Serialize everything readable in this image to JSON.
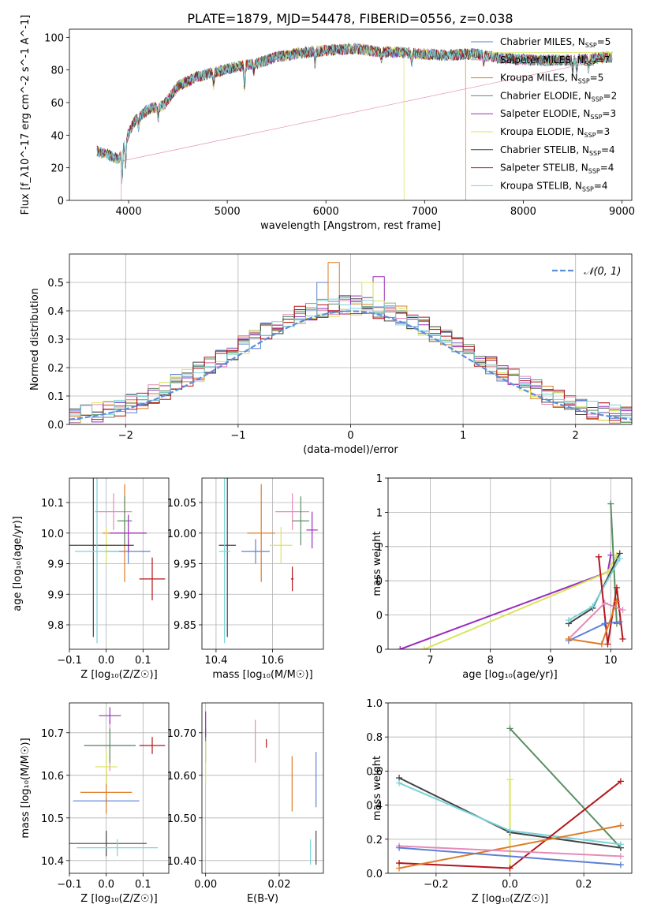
{
  "figure": {
    "title": "PLATE=1879, MJD=54478, FIBERID=0556, z=0.038"
  },
  "colors": {
    "Chabrier MILES": "#5b7fd6",
    "Salpeter MILES": "#e58bb8",
    "Kroupa MILES": "#de7c26",
    "Chabrier ELODIE": "#5a8f64",
    "Salpeter ELODIE": "#9a2dbd",
    "Kroupa ELODIE": "#d9e45c",
    "Chabrier STELIB": "#444444",
    "Salpeter STELIB": "#b2161c",
    "Kroupa STELIB": "#7ad3d9",
    "normal": "#5b8fd9",
    "grid": "#b0b0b0"
  },
  "chart_data": [
    {
      "type": "line",
      "title": "PLATE=1879, MJD=54478, FIBERID=0556, z=0.038",
      "xlabel": "wavelength [Angstrom, rest frame]",
      "ylabel": "Flux [f_λ10^-17 erg cm^-2 s^-1 A^-1]",
      "xlim": [
        3400,
        9100
      ],
      "ylim": [
        0,
        105
      ],
      "xticks": [
        4000,
        5000,
        6000,
        7000,
        8000,
        9000
      ],
      "yticks": [
        0,
        20,
        40,
        60,
        80,
        100
      ],
      "legend_position": "right",
      "legend": [
        {
          "key": "Chabrier MILES",
          "label": "Chabrier MILES, N",
          "sub": "SSP",
          "tail": "=5"
        },
        {
          "key": "Salpeter MILES",
          "label": "Salpeter MILES, N",
          "sub": "SSP",
          "tail": "=7"
        },
        {
          "key": "Kroupa MILES",
          "label": "Kroupa MILES, N",
          "sub": "SSP",
          "tail": "=5"
        },
        {
          "key": "Chabrier ELODIE",
          "label": "Chabrier ELODIE, N",
          "sub": "SSP",
          "tail": "=2"
        },
        {
          "key": "Salpeter ELODIE",
          "label": "Salpeter ELODIE, N",
          "sub": "SSP",
          "tail": "=3"
        },
        {
          "key": "Kroupa ELODIE",
          "label": "Kroupa ELODIE, N",
          "sub": "SSP",
          "tail": "=3"
        },
        {
          "key": "Chabrier STELIB",
          "label": "Chabrier STELIB, N",
          "sub": "SSP",
          "tail": "=4"
        },
        {
          "key": "Salpeter STELIB",
          "label": "Salpeter STELIB, N",
          "sub": "SSP",
          "tail": "=4"
        },
        {
          "key": "Kroupa STELIB",
          "label": "Kroupa STELIB, N",
          "sub": "SSP",
          "tail": "=4"
        }
      ],
      "spectrum_range": [
        3680,
        8900
      ],
      "continuum": [
        [
          3680,
          30
        ],
        [
          3800,
          28
        ],
        [
          3900,
          25
        ],
        [
          3960,
          35
        ],
        [
          4050,
          48
        ],
        [
          4200,
          56
        ],
        [
          4350,
          58
        ],
        [
          4500,
          70
        ],
        [
          4700,
          76
        ],
        [
          4900,
          79
        ],
        [
          5100,
          82
        ],
        [
          5300,
          84
        ],
        [
          5500,
          88
        ],
        [
          5700,
          90
        ],
        [
          6000,
          92
        ],
        [
          6300,
          93
        ],
        [
          6550,
          91
        ],
        [
          6700,
          91
        ],
        [
          6900,
          90
        ],
        [
          7200,
          89
        ],
        [
          7500,
          90
        ],
        [
          7800,
          87
        ],
        [
          8100,
          86
        ],
        [
          8500,
          86
        ],
        [
          8900,
          88
        ]
      ],
      "absorption": [
        [
          3934,
          18
        ],
        [
          3969,
          14
        ],
        [
          4102,
          6
        ],
        [
          4300,
          8
        ],
        [
          4861,
          8
        ],
        [
          5175,
          14
        ],
        [
          5270,
          5
        ],
        [
          5890,
          8
        ],
        [
          6563,
          4
        ],
        [
          6870,
          6
        ],
        [
          7600,
          4
        ],
        [
          8500,
          6
        ],
        [
          8542,
          6
        ],
        [
          8662,
          6
        ]
      ],
      "dropouts": [
        {
          "key": "Salpeter MILES",
          "x": 3925,
          "w": 10
        },
        {
          "key": "Kroupa ELODIE",
          "x": 6790,
          "w": 12
        },
        {
          "key": "Kroupa MILES",
          "x": 7415,
          "w": 12
        }
      ],
      "truncated_after": {
        "Kroupa MILES": 7415
      }
    },
    {
      "type": "area",
      "xlabel": "(data-model)/error",
      "ylabel": "Normed distribution",
      "xlim": [
        -2.5,
        2.5
      ],
      "ylim": [
        0,
        0.6
      ],
      "xticks": [
        -2,
        -1,
        0,
        1,
        2
      ],
      "yticks": [
        0.0,
        0.1,
        0.2,
        0.3,
        0.4,
        0.5
      ],
      "bin_width": 0.1,
      "legend": [
        {
          "key": "normal",
          "label": "𝒩(0, 1)"
        }
      ],
      "legend_position": "top-right",
      "notable_peaks": [
        {
          "key": "Kroupa MILES",
          "x": -0.15,
          "y": 0.57
        },
        {
          "key": "Chabrier MILES",
          "x": -0.25,
          "y": 0.5
        },
        {
          "key": "Kroupa ELODIE",
          "x": 0.15,
          "y": 0.5
        },
        {
          "key": "Salpeter ELODIE",
          "x": 0.25,
          "y": 0.52
        }
      ]
    },
    {
      "type": "scatter",
      "xlabel": "Z [log₁₀(Z/Z☉)]",
      "ylabel": "age  [log₁₀(age/yr)]",
      "xlim": [
        -0.1,
        0.17
      ],
      "ylim": [
        9.81,
        10.09
      ],
      "xticks": [
        -0.1,
        0.0,
        0.1
      ],
      "yticks": [
        9.85,
        9.9,
        9.95,
        10.0,
        10.05
      ],
      "points": [
        {
          "key": "Chabrier MILES",
          "x": 0.06,
          "xerr": 0.06,
          "y": 9.97,
          "yerr": 0.02
        },
        {
          "key": "Salpeter MILES",
          "x": 0.02,
          "xerr": 0.05,
          "y": 10.035,
          "yerr": 0.03
        },
        {
          "key": "Kroupa MILES",
          "x": 0.05,
          "xerr": 0.06,
          "y": 10.0,
          "yerr": 0.08
        },
        {
          "key": "Chabrier ELODIE",
          "x": 0.05,
          "xerr": 0.02,
          "y": 10.02,
          "yerr": 0.04
        },
        {
          "key": "Salpeter ELODIE",
          "x": 0.06,
          "xerr": 0.05,
          "y": 10.0,
          "yerr": 0.03
        },
        {
          "key": "Kroupa ELODIE",
          "x": 0.0,
          "xerr": 0.04,
          "y": 9.98,
          "yerr": 0.03
        },
        {
          "key": "Chabrier STELIB",
          "x": -0.035,
          "xerr": 0.11,
          "y": 9.98,
          "yerr": 0.15
        },
        {
          "key": "Salpeter STELIB",
          "x": 0.125,
          "xerr": 0.035,
          "y": 9.925,
          "yerr": 0.035
        },
        {
          "key": "Kroupa STELIB",
          "x": -0.025,
          "xerr": 0.06,
          "y": 9.97,
          "yerr": 0.15
        }
      ]
    },
    {
      "type": "scatter",
      "xlabel": "mass [log₁₀(M/M☉)]",
      "ylabel": "",
      "xlim": [
        10.35,
        10.78
      ],
      "ylim": [
        9.81,
        10.09
      ],
      "xticks": [
        10.4,
        10.6
      ],
      "yticks": [
        9.85,
        9.9,
        9.95,
        10.0,
        10.05
      ],
      "points": [
        {
          "key": "Chabrier MILES",
          "x": 10.54,
          "xerr": 0.05,
          "y": 9.97,
          "yerr": 0.02
        },
        {
          "key": "Salpeter MILES",
          "x": 10.67,
          "xerr": 0.06,
          "y": 10.035,
          "yerr": 0.03
        },
        {
          "key": "Kroupa MILES",
          "x": 10.56,
          "xerr": 0.05,
          "y": 10.0,
          "yerr": 0.08
        },
        {
          "key": "Chabrier ELODIE",
          "x": 10.7,
          "xerr": 0.03,
          "y": 10.02,
          "yerr": 0.04
        },
        {
          "key": "Salpeter ELODIE",
          "x": 10.74,
          "xerr": 0.02,
          "y": 10.005,
          "yerr": 0.03
        },
        {
          "key": "Kroupa ELODIE",
          "x": 10.63,
          "xerr": 0.04,
          "y": 9.98,
          "yerr": 0.03
        },
        {
          "key": "Chabrier STELIB",
          "x": 10.44,
          "xerr": 0.03,
          "y": 9.98,
          "yerr": 0.15
        },
        {
          "key": "Salpeter STELIB",
          "x": 10.67,
          "xerr": 0.005,
          "y": 9.925,
          "yerr": 0.02
        },
        {
          "key": "Kroupa STELIB",
          "x": 10.43,
          "xerr": 0.02,
          "y": 9.97,
          "yerr": 0.15
        }
      ]
    },
    {
      "type": "line",
      "xlabel": "age  [log₁₀(age/yr)]",
      "ylabel": "mass weight",
      "xlim": [
        6.3,
        10.35
      ],
      "ylim": [
        0,
        1
      ],
      "xticks": [
        7,
        8,
        9,
        10
      ],
      "yticks": [
        0.0,
        0.2,
        0.4,
        0.6,
        0.8,
        1.0
      ],
      "series": [
        {
          "key": "Salpeter ELODIE",
          "x": [
            6.5,
            9.95,
            10.0
          ],
          "y": [
            0.0,
            0.45,
            0.55
          ]
        },
        {
          "key": "Kroupa ELODIE",
          "x": [
            6.9,
            9.95,
            10.1
          ],
          "y": [
            0.0,
            0.45,
            0.55
          ]
        },
        {
          "key": "Chabrier ELODIE",
          "x": [
            10.0,
            10.1
          ],
          "y": [
            0.85,
            0.15
          ]
        },
        {
          "key": "Chabrier STELIB",
          "x": [
            9.3,
            9.7,
            10.15
          ],
          "y": [
            0.15,
            0.24,
            0.56
          ]
        },
        {
          "key": "Kroupa STELIB",
          "x": [
            9.3,
            9.7,
            10.15
          ],
          "y": [
            0.17,
            0.25,
            0.53
          ]
        },
        {
          "key": "Salpeter STELIB",
          "x": [
            9.8,
            9.95,
            10.1,
            10.2
          ],
          "y": [
            0.54,
            0.03,
            0.36,
            0.06
          ]
        },
        {
          "key": "Chabrier MILES",
          "x": [
            9.3,
            9.9,
            10.15
          ],
          "y": [
            0.05,
            0.15,
            0.16
          ]
        },
        {
          "key": "Salpeter MILES",
          "x": [
            9.3,
            9.9,
            10.2
          ],
          "y": [
            0.06,
            0.27,
            0.23
          ]
        },
        {
          "key": "Kroupa MILES",
          "x": [
            9.3,
            9.85,
            10.1
          ],
          "y": [
            0.06,
            0.03,
            0.28
          ]
        }
      ]
    },
    {
      "type": "scatter",
      "xlabel": "Z [log₁₀(Z/Z☉)]",
      "ylabel": "mass [log₁₀(M/M☉)]",
      "xlim": [
        -0.1,
        0.17
      ],
      "ylim": [
        10.37,
        10.77
      ],
      "xticks": [
        -0.1,
        0.0,
        0.1
      ],
      "yticks": [
        10.4,
        10.5,
        10.6,
        10.7
      ],
      "points": [
        {
          "key": "Chabrier MILES",
          "x": 0.0,
          "xerr": 0.09,
          "y": 10.54,
          "yerr": 0.005
        },
        {
          "key": "Salpeter MILES",
          "x": 0.01,
          "xerr": 0.07,
          "y": 10.67,
          "yerr": 0.06
        },
        {
          "key": "Kroupa MILES",
          "x": 0.0,
          "xerr": 0.07,
          "y": 10.56,
          "yerr": 0.05
        },
        {
          "key": "Chabrier ELODIE",
          "x": 0.01,
          "xerr": 0.07,
          "y": 10.67,
          "yerr": 0.04
        },
        {
          "key": "Salpeter ELODIE",
          "x": 0.01,
          "xerr": 0.03,
          "y": 10.74,
          "yerr": 0.02
        },
        {
          "key": "Kroupa ELODIE",
          "x": 0.0,
          "xerr": 0.03,
          "y": 10.62,
          "yerr": 0.04
        },
        {
          "key": "Chabrier STELIB",
          "x": 0.0,
          "xerr": 0.11,
          "y": 10.44,
          "yerr": 0.03
        },
        {
          "key": "Salpeter STELIB",
          "x": 0.125,
          "xerr": 0.035,
          "y": 10.67,
          "yerr": 0.02
        },
        {
          "key": "Kroupa STELIB",
          "x": 0.03,
          "xerr": 0.11,
          "y": 10.43,
          "yerr": 0.02
        }
      ]
    },
    {
      "type": "scatter",
      "xlabel": "E(B-V)",
      "ylabel": "",
      "xlim": [
        -0.001,
        0.032
      ],
      "ylim": [
        10.37,
        10.77
      ],
      "xticks": [
        0.0,
        0.02
      ],
      "yticks": [
        10.4,
        10.5,
        10.6,
        10.7
      ],
      "points": [
        {
          "key": "Chabrier MILES",
          "x": 0.03,
          "y": 10.59,
          "yerr": 0.065
        },
        {
          "key": "Salpeter MILES",
          "x": 0.0135,
          "y": 10.68,
          "yerr": 0.05
        },
        {
          "key": "Kroupa MILES",
          "x": 0.0235,
          "y": 10.58,
          "yerr": 0.065
        },
        {
          "key": "Chabrier ELODIE",
          "x": 0.0,
          "y": 10.67,
          "yerr": 0.04
        },
        {
          "key": "Salpeter ELODIE",
          "x": 0.0,
          "y": 10.72,
          "yerr": 0.03
        },
        {
          "key": "Kroupa ELODIE",
          "x": 0.0,
          "y": 10.63,
          "yerr": 0.05
        },
        {
          "key": "Chabrier STELIB",
          "x": 0.03,
          "y": 10.43,
          "yerr": 0.04
        },
        {
          "key": "Salpeter STELIB",
          "x": 0.0165,
          "y": 10.675,
          "yerr": 0.01
        },
        {
          "key": "Kroupa STELIB",
          "x": 0.0285,
          "y": 10.42,
          "yerr": 0.03
        }
      ]
    },
    {
      "type": "line",
      "xlabel": "Z [log₁₀(Z/Z☉)]",
      "ylabel": "mass weight",
      "xlim": [
        -0.33,
        0.33
      ],
      "ylim": [
        0,
        1
      ],
      "xticks": [
        -0.2,
        0.0,
        0.2
      ],
      "yticks": [
        0.0,
        0.2,
        0.4,
        0.6,
        0.8,
        1.0
      ],
      "series": [
        {
          "key": "Chabrier ELODIE",
          "x": [
            0.0,
            0.3
          ],
          "y": [
            0.85,
            0.15
          ]
        },
        {
          "key": "Kroupa ELODIE",
          "x": [
            0.0,
            0.0
          ],
          "y": [
            0.55,
            0.03
          ]
        },
        {
          "key": "Chabrier STELIB",
          "x": [
            -0.3,
            0.0,
            0.3
          ],
          "y": [
            0.56,
            0.24,
            0.15
          ]
        },
        {
          "key": "Kroupa STELIB",
          "x": [
            -0.3,
            0.0,
            0.3
          ],
          "y": [
            0.53,
            0.25,
            0.17
          ]
        },
        {
          "key": "Salpeter STELIB",
          "x": [
            -0.3,
            0.0,
            0.3
          ],
          "y": [
            0.06,
            0.03,
            0.54
          ]
        },
        {
          "key": "Kroupa MILES",
          "x": [
            -0.3,
            0.3
          ],
          "y": [
            0.03,
            0.28
          ]
        },
        {
          "key": "Salpeter MILES",
          "x": [
            -0.3,
            0.3
          ],
          "y": [
            0.16,
            0.1
          ]
        },
        {
          "key": "Chabrier MILES",
          "x": [
            -0.3,
            0.3
          ],
          "y": [
            0.15,
            0.05
          ]
        }
      ]
    }
  ]
}
